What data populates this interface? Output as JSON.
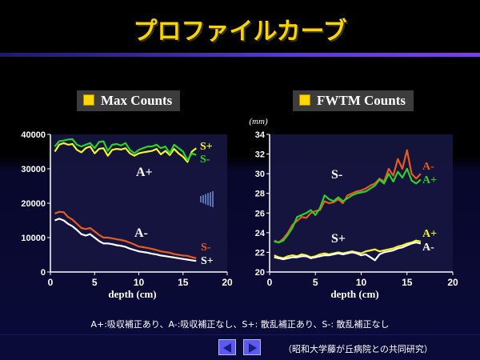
{
  "slide_title": "プロファイルカーブ",
  "footnote": "A+:吸収補正あり、A-:吸収補正なし、S+: 散乱補正あり、S-: 散乱補正なし",
  "credit": "（昭和大学藤が丘病院との共同研究）",
  "colors": {
    "title": "#ffd200",
    "chart_bg": "#161640",
    "S+": "#f5f528",
    "S-": "#2ad22a",
    "A+": "#f5f528",
    "A-": "#e85a1e",
    "A-white": "#ffffff"
  },
  "icons": {
    "nav_prev": "triangle-left-icon",
    "nav_next": "triangle-right-icon",
    "legend_square": "yellow-square-icon"
  },
  "chart_data": [
    {
      "type": "line",
      "title": "Max Counts",
      "xlabel": "depth (cm)",
      "ylabel": "",
      "xlim": [
        0,
        20
      ],
      "ylim": [
        0,
        40000
      ],
      "xticks": [
        0,
        5,
        10,
        15,
        20
      ],
      "yticks": [
        0,
        10000,
        20000,
        30000,
        40000
      ],
      "x": [
        0.5,
        1,
        1.5,
        2,
        2.5,
        3,
        3.5,
        4,
        4.5,
        5,
        5.5,
        6,
        6.5,
        7,
        7.5,
        8,
        8.5,
        9,
        9.5,
        10,
        10.5,
        11,
        11.5,
        12,
        12.5,
        13,
        13.5,
        14,
        14.5,
        15,
        15.5,
        16,
        16.5
      ],
      "series": [
        {
          "name": "S+",
          "color": "#f5f528",
          "values": [
            35000,
            37000,
            37500,
            37000,
            37200,
            35500,
            34800,
            36000,
            36500,
            34500,
            35800,
            36000,
            33800,
            35500,
            35800,
            35600,
            36000,
            34500,
            33800,
            34500,
            34800,
            35000,
            35200,
            35800,
            34200,
            35200,
            34000,
            35800,
            34500,
            33500,
            32000,
            35000,
            36000
          ]
        },
        {
          "name": "S-",
          "color": "#2ad22a",
          "values": [
            36500,
            38000,
            38200,
            38500,
            38600,
            37000,
            36500,
            37000,
            37500,
            36000,
            37800,
            38000,
            35200,
            37000,
            37200,
            36800,
            37500,
            35500,
            34500,
            35500,
            36000,
            36500,
            36500,
            37000,
            36000,
            36500,
            34500,
            37000,
            36000,
            35000,
            32500,
            34500,
            34000
          ]
        },
        {
          "name": "A-",
          "color": "#e85a1e",
          "values": [
            17000,
            17500,
            17400,
            16000,
            15200,
            14000,
            12800,
            12500,
            12800,
            11800,
            10800,
            10000,
            10000,
            9800,
            9500,
            9300,
            9000,
            8500,
            8000,
            7400,
            7200,
            7000,
            6700,
            6400,
            6000,
            5800,
            5600,
            5200,
            5000,
            4800,
            4700,
            4300,
            4000
          ]
        },
        {
          "name": "S+ (A-)",
          "color": "#ffffff",
          "values": [
            15000,
            15500,
            15000,
            14000,
            13300,
            12200,
            11000,
            10600,
            11000,
            10000,
            9000,
            8300,
            8300,
            8100,
            7800,
            7600,
            7300,
            6800,
            6400,
            6000,
            5800,
            5600,
            5300,
            5100,
            4800,
            4600,
            4400,
            4200,
            4000,
            3800,
            3600,
            3400,
            3200
          ]
        }
      ],
      "annotations": [
        {
          "text": "S+",
          "color": "#f5f528"
        },
        {
          "text": "S-",
          "color": "#2ad22a"
        },
        {
          "text": "A+",
          "color": "#ffffff"
        },
        {
          "text": "A-",
          "color": "#ffffff"
        },
        {
          "text": "S-",
          "color": "#e85a1e"
        },
        {
          "text": "S+",
          "color": "#ffffff"
        }
      ]
    },
    {
      "type": "line",
      "title": "FWTM Counts",
      "unit_label": "(mm)",
      "xlabel": "depth (cm)",
      "ylabel": "",
      "xlim": [
        0,
        20
      ],
      "ylim": [
        20,
        34
      ],
      "xticks": [
        0,
        5,
        10,
        15,
        20
      ],
      "yticks": [
        20,
        22,
        24,
        26,
        28,
        30,
        32,
        34
      ],
      "x": [
        0.5,
        1,
        1.5,
        2,
        2.5,
        3,
        3.5,
        4,
        4.5,
        5,
        5.5,
        6,
        6.5,
        7,
        7.5,
        8,
        8.5,
        9,
        9.5,
        10,
        10.5,
        11,
        11.5,
        12,
        12.5,
        13,
        13.5,
        14,
        14.5,
        15,
        15.5,
        16,
        16.5
      ],
      "series": [
        {
          "name": "A-",
          "color": "#e85a1e",
          "values": [
            23.2,
            23.0,
            23.4,
            24.0,
            24.8,
            25.2,
            25.6,
            25.5,
            26.0,
            26.2,
            26.3,
            27.2,
            27.0,
            27.1,
            27.4,
            27.0,
            27.8,
            28.0,
            28.2,
            28.3,
            28.5,
            28.8,
            29.0,
            29.5,
            29.2,
            30.5,
            29.8,
            31.5,
            30.5,
            32.4,
            30.0,
            29.5,
            30.0
          ]
        },
        {
          "name": "A+",
          "color": "#2ad22a",
          "values": [
            23.1,
            23.0,
            23.2,
            23.8,
            24.5,
            25.6,
            25.8,
            26.0,
            26.3,
            25.8,
            26.5,
            27.8,
            27.4,
            27.2,
            27.6,
            27.2,
            27.5,
            27.8,
            28.0,
            28.1,
            28.2,
            28.5,
            28.8,
            29.4,
            29.0,
            30.0,
            29.2,
            30.2,
            29.6,
            30.5,
            29.3,
            29.0,
            29.4
          ]
        },
        {
          "name": "A+ (S)",
          "color": "#f5f528",
          "values": [
            21.7,
            21.5,
            21.4,
            21.6,
            21.7,
            21.6,
            21.8,
            21.7,
            21.5,
            21.6,
            21.8,
            21.9,
            21.8,
            21.9,
            22.0,
            21.9,
            22.0,
            22.1,
            22.0,
            21.9,
            22.1,
            22.2,
            22.3,
            22.1,
            22.2,
            22.3,
            22.4,
            22.6,
            22.7,
            22.9,
            23.0,
            23.2,
            23.1
          ]
        },
        {
          "name": "A- (S)",
          "color": "#ffffff",
          "values": [
            21.5,
            21.4,
            21.3,
            21.4,
            21.5,
            21.5,
            21.6,
            21.6,
            21.4,
            21.5,
            21.6,
            21.7,
            21.7,
            21.8,
            21.9,
            21.8,
            21.9,
            22.0,
            21.9,
            21.7,
            21.8,
            21.5,
            21.2,
            21.8,
            22.0,
            22.1,
            22.2,
            22.4,
            22.5,
            22.7,
            22.9,
            23.0,
            22.9
          ]
        }
      ],
      "annotations": [
        {
          "text": "S-",
          "color": "#ffffff"
        },
        {
          "text": "S+",
          "color": "#ffffff"
        },
        {
          "text": "A-",
          "color": "#e85a1e"
        },
        {
          "text": "A+",
          "color": "#2ad22a"
        },
        {
          "text": "A+",
          "color": "#f5f528"
        },
        {
          "text": "A-",
          "color": "#ffffff"
        }
      ]
    }
  ]
}
